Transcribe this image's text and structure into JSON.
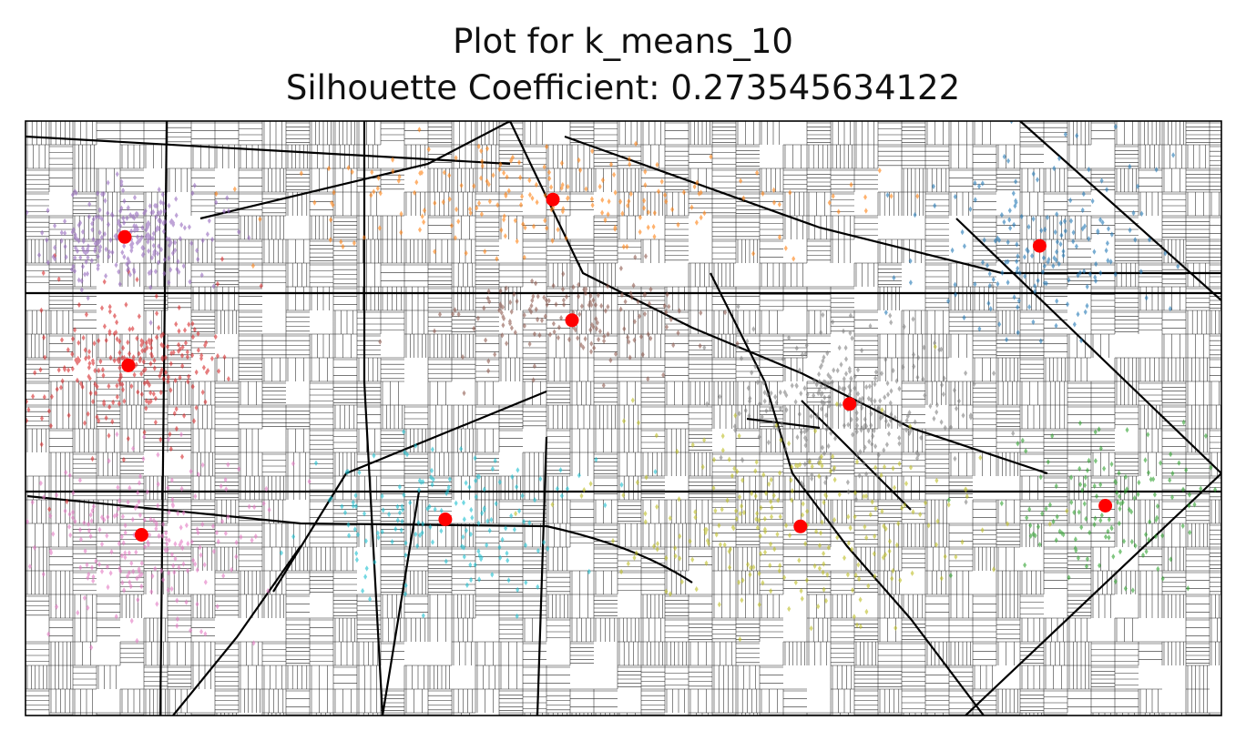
{
  "chart_data": {
    "type": "scatter",
    "title": "Plot for k_means_10",
    "subtitle": "Silhouette Coefficient: 0.273545634122",
    "silhouette_coefficient": 0.273545634122,
    "n_clusters": 10,
    "xlabel": "",
    "ylabel": "",
    "axes_ticks_visible": false,
    "grid": false,
    "background": "street map",
    "cluster_colors": [
      "#1f77b4",
      "#ff7f0e",
      "#2ca02c",
      "#d62728",
      "#9467bd",
      "#8c564b",
      "#e377c2",
      "#7f7f7f",
      "#bcbd22",
      "#17becf"
    ],
    "centroid_color": "#ff0000",
    "centroid_marker": "circle",
    "point_marker": "diamond",
    "xlim": [
      0,
      100
    ],
    "ylim": [
      0,
      100
    ],
    "clusters": [
      {
        "color": "#1f77b4",
        "centroid": [
          84.8,
          79.0
        ],
        "spread": [
          10.5,
          16
        ],
        "count": 170
      },
      {
        "color": "#ff7f0e",
        "centroid": [
          44.1,
          86.8
        ],
        "spread": [
          26,
          10
        ],
        "count": 200
      },
      {
        "color": "#2ca02c",
        "centroid": [
          90.3,
          35.3
        ],
        "spread": [
          9.5,
          16
        ],
        "count": 140
      },
      {
        "color": "#d62728",
        "centroid": [
          8.6,
          58.9
        ],
        "spread": [
          9,
          13
        ],
        "count": 260
      },
      {
        "color": "#9467bd",
        "centroid": [
          8.3,
          80.5
        ],
        "spread": [
          9,
          10
        ],
        "count": 260
      },
      {
        "color": "#8c564b",
        "centroid": [
          45.7,
          66.5
        ],
        "spread": [
          11,
          9
        ],
        "count": 160
      },
      {
        "color": "#e377c2",
        "centroid": [
          9.7,
          30.4
        ],
        "spread": [
          11,
          16
        ],
        "count": 230
      },
      {
        "color": "#7f7f7f",
        "centroid": [
          68.9,
          52.4
        ],
        "spread": [
          11,
          14
        ],
        "count": 280
      },
      {
        "color": "#bcbd22",
        "centroid": [
          64.8,
          31.8
        ],
        "spread": [
          18,
          18
        ],
        "count": 260
      },
      {
        "color": "#17becf",
        "centroid": [
          35.1,
          33.0
        ],
        "spread": [
          13,
          13
        ],
        "count": 160
      }
    ]
  }
}
